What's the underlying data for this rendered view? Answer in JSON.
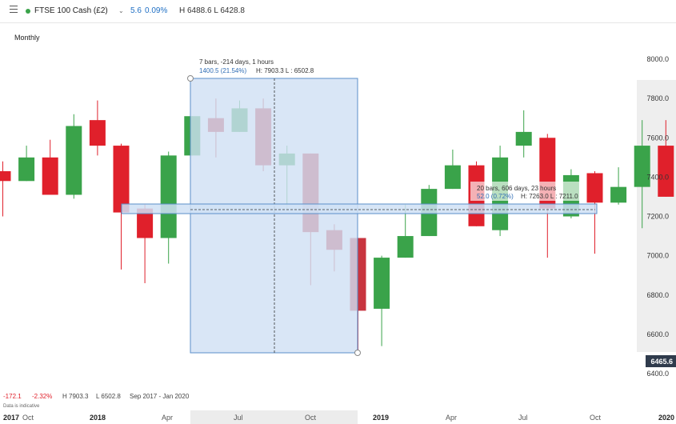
{
  "header": {
    "symbol": "FTSE 100 Cash (£2)",
    "change": "5.6",
    "change_pct": "0.09%",
    "high_low": "H 6488.6  L 6428.8",
    "menu_icon": "hamburger-menu-icon",
    "dropdown_icon": "chevron-down-icon",
    "status_color": "#3aa34a"
  },
  "period": "Monthly",
  "colors": {
    "up": "#3aa34a",
    "down": "#e0202b",
    "down_alt": "#c8343f",
    "accent": "#1f6fc4"
  },
  "chart_data": {
    "type": "candlestick",
    "y_axis": {
      "range": [
        6400,
        8000
      ],
      "ticks": [
        "8000.0",
        "7800.0",
        "7600.0",
        "7400.0",
        "7200.0",
        "7000.0",
        "6800.0",
        "6600.0",
        "6400.0"
      ],
      "position": "right"
    },
    "x_axis": {
      "labels": [
        "2017",
        "Oct",
        "2018",
        "Apr",
        "Jul",
        "Oct",
        "2019",
        "Apr",
        "Jul",
        "Oct",
        "2020"
      ]
    },
    "current_price": "6465.6",
    "candles": [
      {
        "open": 7430,
        "high": 7480,
        "low": 7200,
        "close": 7380
      },
      {
        "open": 7380,
        "high": 7560,
        "low": 7380,
        "close": 7500
      },
      {
        "open": 7500,
        "high": 7590,
        "low": 7310,
        "close": 7310
      },
      {
        "open": 7310,
        "high": 7720,
        "low": 7290,
        "close": 7660
      },
      {
        "open": 7690,
        "high": 7790,
        "low": 7510,
        "close": 7560
      },
      {
        "open": 7560,
        "high": 7570,
        "low": 6930,
        "close": 7220
      },
      {
        "open": 7240,
        "high": 7260,
        "low": 6860,
        "close": 7090
      },
      {
        "open": 7090,
        "high": 7530,
        "low": 6960,
        "close": 7510
      },
      {
        "open": 7510,
        "high": 7710,
        "low": 7510,
        "close": 7710
      },
      {
        "open": 7700,
        "high": 7800,
        "low": 7500,
        "close": 7630
      },
      {
        "open": 7630,
        "high": 7790,
        "low": 7630,
        "close": 7750
      },
      {
        "open": 7750,
        "high": 7800,
        "low": 7430,
        "close": 7460
      },
      {
        "open": 7460,
        "high": 7560,
        "low": 7230,
        "close": 7520
      },
      {
        "open": 7520,
        "high": 7520,
        "low": 6850,
        "close": 7120
      },
      {
        "open": 7130,
        "high": 7160,
        "low": 6920,
        "close": 7030
      },
      {
        "open": 7090,
        "high": 7090,
        "low": 6510,
        "close": 6720
      },
      {
        "open": 6730,
        "high": 7000,
        "low": 6540,
        "close": 6990
      },
      {
        "open": 6990,
        "high": 7260,
        "low": 6990,
        "close": 7100
      },
      {
        "open": 7100,
        "high": 7360,
        "low": 7100,
        "close": 7340
      },
      {
        "open": 7340,
        "high": 7540,
        "low": 7340,
        "close": 7460
      },
      {
        "open": 7460,
        "high": 7480,
        "low": 7150,
        "close": 7150
      },
      {
        "open": 7130,
        "high": 7560,
        "low": 7100,
        "close": 7500
      },
      {
        "open": 7560,
        "high": 7740,
        "low": 7500,
        "close": 7630
      },
      {
        "open": 7600,
        "high": 7620,
        "low": 6990,
        "close": 7240
      },
      {
        "open": 7200,
        "high": 7440,
        "low": 7190,
        "close": 7410
      },
      {
        "open": 7420,
        "high": 7430,
        "low": 7010,
        "close": 7270
      },
      {
        "open": 7270,
        "high": 7450,
        "low": 7260,
        "close": 7350
      },
      {
        "open": 7350,
        "high": 7690,
        "low": 7140,
        "close": 7560
      },
      {
        "open": 7560,
        "high": 7690,
        "low": 7300,
        "close": 7300
      }
    ],
    "annotations": [
      {
        "line1": "7 bars, -214 days, 1 hours",
        "line2_value": "1400.5 (21.54%)",
        "line2_hl": "H: 7903.3 L : 6502.8"
      },
      {
        "line1": "20 bars, 606 days, 23 hours",
        "line2_value": "52.0 (0.72%)",
        "line2_hl": "H: 7263.0 L : 7211.0"
      }
    ]
  },
  "footer": {
    "change": "-172.1",
    "change_pct": "-2.32%",
    "high": "H 7903.3",
    "low": "L 6502.8",
    "range": "Sep 2017 - Jan 2020",
    "note": "Data is indicative"
  }
}
